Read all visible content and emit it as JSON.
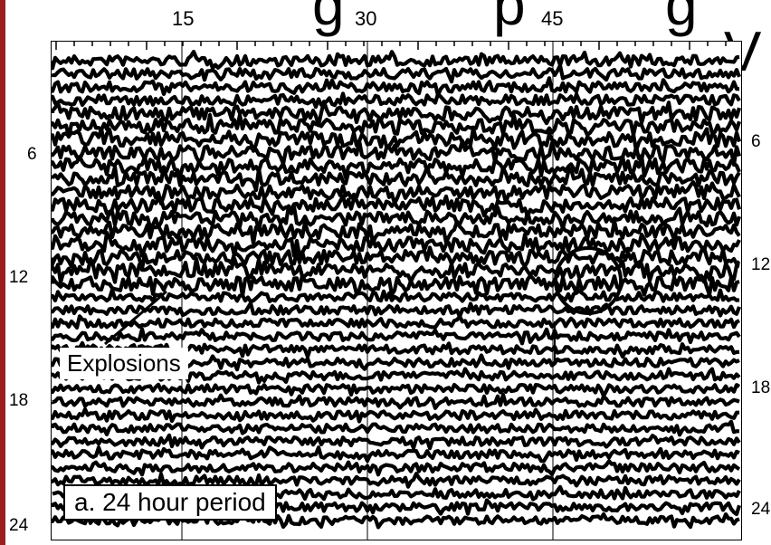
{
  "title_fragments": [
    "g",
    "p",
    "g",
    "V"
  ],
  "top_axis": [
    "15",
    "30",
    "45"
  ],
  "left_axis": [
    "6",
    "12",
    "18",
    "24"
  ],
  "right_axis": [
    "6",
    "12",
    "18",
    "24"
  ],
  "labels": {
    "explosions": "Explosions",
    "period": "a. 24 hour period"
  },
  "colors": {
    "accent": "#9b1d1d",
    "trace": "#000000",
    "background": "#ffffff"
  }
}
